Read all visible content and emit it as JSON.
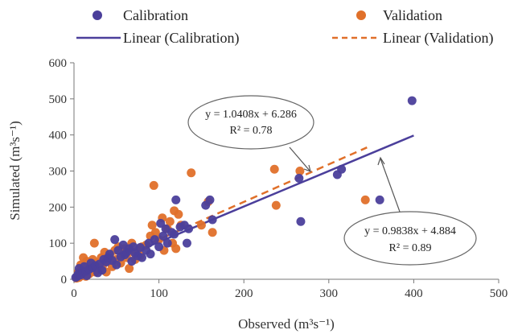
{
  "chart_data": {
    "type": "scatter",
    "title": "",
    "xlabel": "Observed (m³s⁻¹)",
    "ylabel": "Simulated (m³s⁻¹)",
    "xlim": [
      0,
      500
    ],
    "ylim": [
      0,
      600
    ],
    "xticks": [
      "0",
      "100",
      "200",
      "300",
      "400",
      "500"
    ],
    "yticks": [
      "0",
      "100",
      "200",
      "300",
      "400",
      "500",
      "600"
    ],
    "grid": false,
    "legend_position": "top",
    "legend": {
      "calibration": "Calibration",
      "validation": "Validation",
      "linear_calibration": "Linear (Calibration)",
      "linear_validation": "Linear (Validation)"
    },
    "colors": {
      "calibration": "#4b3f9b",
      "validation": "#e0702a"
    },
    "series": [
      {
        "name": "Calibration",
        "points": [
          [
            2,
            5
          ],
          [
            4,
            8
          ],
          [
            5,
            15
          ],
          [
            6,
            30
          ],
          [
            8,
            12
          ],
          [
            10,
            20
          ],
          [
            12,
            35
          ],
          [
            14,
            22
          ],
          [
            15,
            10
          ],
          [
            18,
            28
          ],
          [
            20,
            45
          ],
          [
            22,
            32
          ],
          [
            25,
            38
          ],
          [
            28,
            18
          ],
          [
            30,
            42
          ],
          [
            33,
            25
          ],
          [
            35,
            55
          ],
          [
            38,
            48
          ],
          [
            40,
            60
          ],
          [
            42,
            70
          ],
          [
            45,
            52
          ],
          [
            48,
            110
          ],
          [
            50,
            40
          ],
          [
            52,
            80
          ],
          [
            55,
            62
          ],
          [
            58,
            95
          ],
          [
            60,
            68
          ],
          [
            62,
            75
          ],
          [
            65,
            85
          ],
          [
            68,
            50
          ],
          [
            70,
            90
          ],
          [
            72,
            72
          ],
          [
            75,
            65
          ],
          [
            78,
            88
          ],
          [
            80,
            60
          ],
          [
            85,
            80
          ],
          [
            88,
            100
          ],
          [
            90,
            70
          ],
          [
            95,
            110
          ],
          [
            100,
            90
          ],
          [
            102,
            155
          ],
          [
            105,
            120
          ],
          [
            108,
            140
          ],
          [
            110,
            100
          ],
          [
            115,
            130
          ],
          [
            118,
            125
          ],
          [
            120,
            220
          ],
          [
            125,
            145
          ],
          [
            130,
            150
          ],
          [
            133,
            100
          ],
          [
            135,
            140
          ],
          [
            155,
            205
          ],
          [
            160,
            220
          ],
          [
            163,
            165
          ],
          [
            265,
            280
          ],
          [
            267,
            160
          ],
          [
            310,
            290
          ],
          [
            315,
            305
          ],
          [
            360,
            220
          ],
          [
            398,
            495
          ]
        ]
      },
      {
        "name": "Validation",
        "points": [
          [
            3,
            3
          ],
          [
            5,
            20
          ],
          [
            6,
            5
          ],
          [
            8,
            40
          ],
          [
            10,
            10
          ],
          [
            11,
            60
          ],
          [
            12,
            25
          ],
          [
            14,
            8
          ],
          [
            15,
            50
          ],
          [
            16,
            30
          ],
          [
            18,
            15
          ],
          [
            20,
            35
          ],
          [
            22,
            55
          ],
          [
            24,
            100
          ],
          [
            25,
            20
          ],
          [
            27,
            45
          ],
          [
            30,
            30
          ],
          [
            32,
            60
          ],
          [
            34,
            40
          ],
          [
            36,
            75
          ],
          [
            38,
            20
          ],
          [
            40,
            50
          ],
          [
            42,
            65
          ],
          [
            45,
            35
          ],
          [
            48,
            80
          ],
          [
            50,
            55
          ],
          [
            52,
            90
          ],
          [
            55,
            45
          ],
          [
            58,
            70
          ],
          [
            60,
            85
          ],
          [
            62,
            60
          ],
          [
            65,
            30
          ],
          [
            68,
            100
          ],
          [
            70,
            75
          ],
          [
            72,
            55
          ],
          [
            75,
            80
          ],
          [
            78,
            65
          ],
          [
            80,
            90
          ],
          [
            85,
            95
          ],
          [
            90,
            120
          ],
          [
            92,
            150
          ],
          [
            94,
            260
          ],
          [
            96,
            130
          ],
          [
            100,
            110
          ],
          [
            104,
            170
          ],
          [
            106,
            80
          ],
          [
            110,
            140
          ],
          [
            113,
            160
          ],
          [
            116,
            100
          ],
          [
            118,
            190
          ],
          [
            120,
            85
          ],
          [
            123,
            180
          ],
          [
            126,
            150
          ],
          [
            138,
            295
          ],
          [
            150,
            150
          ],
          [
            158,
            215
          ],
          [
            163,
            130
          ],
          [
            236,
            305
          ],
          [
            238,
            205
          ],
          [
            266,
            300
          ],
          [
            343,
            220
          ]
        ]
      }
    ],
    "trendlines": [
      {
        "name": "Linear (Calibration)",
        "slope": 0.9838,
        "intercept": 4.884,
        "x_range": [
          0,
          400
        ],
        "equation": "y = 0.9838x  + 4.884",
        "r2": "R² = 0.89"
      },
      {
        "name": "Linear (Validation)",
        "slope": 1.0408,
        "intercept": 6.286,
        "x_range": [
          0,
          345
        ],
        "equation": "y = 1.0408x  + 6.286",
        "r2": "R² = 0.78"
      }
    ]
  }
}
